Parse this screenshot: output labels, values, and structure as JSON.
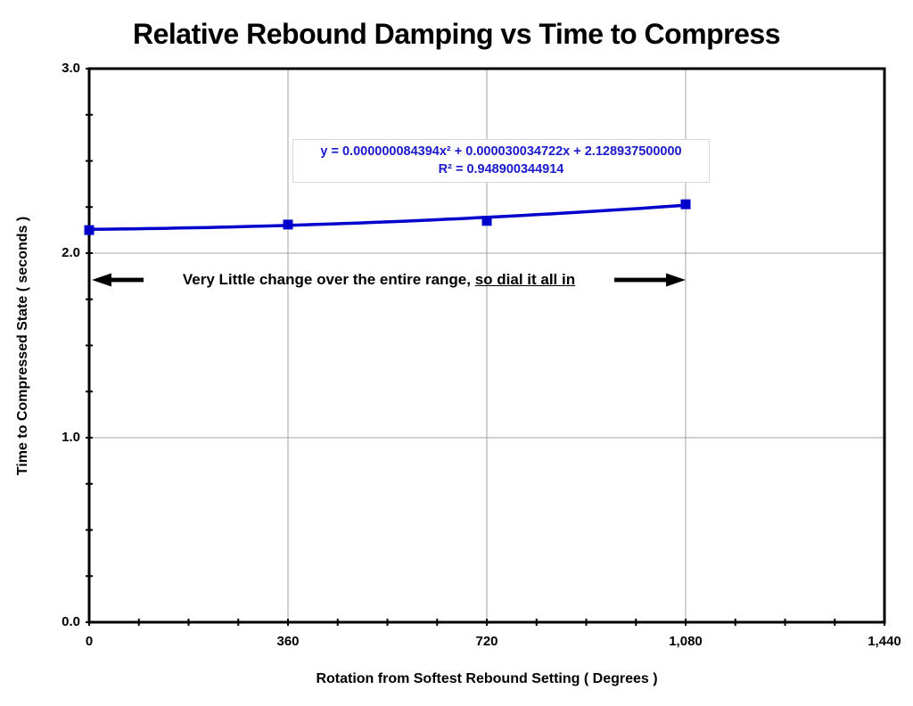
{
  "chart_data": {
    "type": "scatter",
    "title": "Relative Rebound Damping vs Time to Compress",
    "xlabel": "Rotation from Softest Rebound Setting  ( Degrees )",
    "ylabel": "Time to Compressed State  ( seconds )",
    "xlim": [
      0,
      1440
    ],
    "ylim": [
      0,
      3
    ],
    "x_major_ticks": [
      0,
      360,
      720,
      1080,
      1440
    ],
    "x_tick_labels": [
      "0",
      "360",
      "720",
      "1,080",
      "1,440"
    ],
    "x_minor_step": 90,
    "y_major_ticks": [
      3,
      2,
      1,
      0
    ],
    "y_tick_labels": [
      "3.0",
      "2.0",
      "1.0",
      "0.0"
    ],
    "y_minor_step": 0.25,
    "grid": true,
    "legend": "none",
    "points": {
      "x": [
        0,
        360,
        720,
        1080
      ],
      "y": [
        2.125,
        2.155,
        2.175,
        2.265
      ]
    },
    "trendline": {
      "type": "quadratic",
      "a": 8.4394e-08,
      "b": 3.0034722e-05,
      "c": 2.1289375,
      "x_start": 0,
      "x_end": 1080
    },
    "equation_label": "y = 0.000000084394x² + 0.000030034722x + 2.128937500000",
    "r2_label": "R² = 0.948900344914",
    "series_color": "#0000CC",
    "grid_color": "#A3A3A3",
    "axis_color": "#000000",
    "equation_color": "#1a1acc"
  },
  "annotation": {
    "text_plain": "Very Little change over the entire range, ",
    "text_underlined": "so dial it all in"
  }
}
